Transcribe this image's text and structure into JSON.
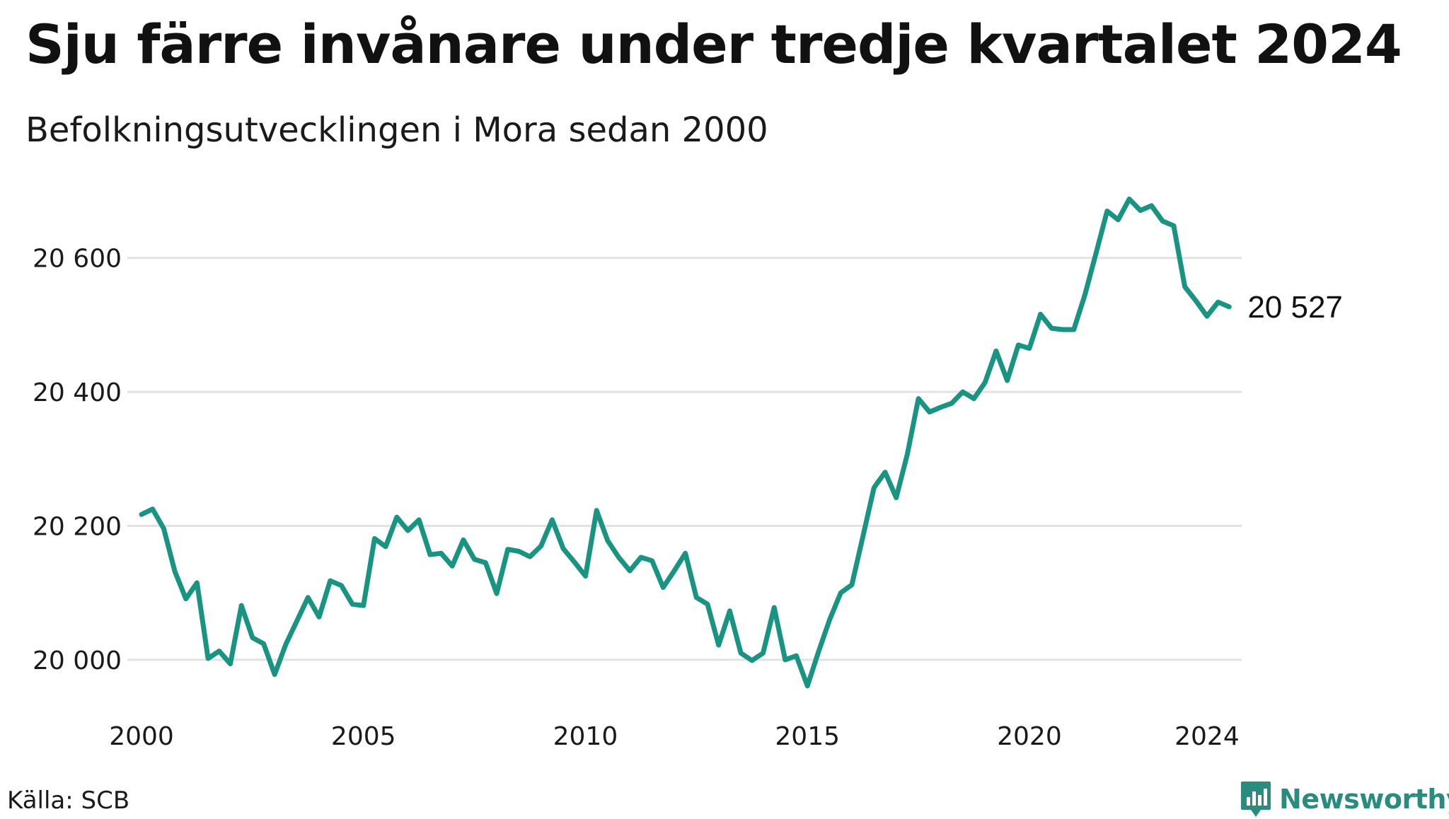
{
  "title": "Sju färre invånare under tredje kvartalet 2024",
  "subtitle": "Befolkningsutvecklingen i Mora sedan 2000",
  "source": "Källa: SCB",
  "brand": "Newsworthy",
  "colors": {
    "line": "#1a9482",
    "grid": "#e2e2e2",
    "brand": "#2a8c7f"
  },
  "chart_data": {
    "type": "line",
    "title": "Sju färre invånare under tredje kvartalet 2024",
    "subtitle": "Befolkningsutvecklingen i Mora sedan 2000",
    "xlabel": "",
    "ylabel": "",
    "grid": true,
    "x_ticks": [
      {
        "value": 2000,
        "label": "2000"
      },
      {
        "value": 2005,
        "label": "2005"
      },
      {
        "value": 2010,
        "label": "2010"
      },
      {
        "value": 2015,
        "label": "2015"
      },
      {
        "value": 2020,
        "label": "2020"
      },
      {
        "value": 2024,
        "label": "2024"
      }
    ],
    "y_ticks": [
      {
        "value": 20000,
        "label": "20 000"
      },
      {
        "value": 20200,
        "label": "20 200"
      },
      {
        "value": 20400,
        "label": "20 400"
      },
      {
        "value": 20600,
        "label": "20 600"
      }
    ],
    "xlim": [
      2000,
      2024.75
    ],
    "ylim": [
      19945,
      20700
    ],
    "end_label": "20 527",
    "series": [
      {
        "x": [
          2000.0,
          2000.25,
          2000.5,
          2000.75,
          2001.0,
          2001.25,
          2001.5,
          2001.75,
          2002.0,
          2002.25,
          2002.5,
          2002.75,
          2003.0,
          2003.25,
          2003.5,
          2003.75,
          2004.0,
          2004.25,
          2004.5,
          2004.75,
          2005.0,
          2005.25,
          2005.5,
          2005.75,
          2006.0,
          2006.25,
          2006.5,
          2006.75,
          2007.0,
          2007.25,
          2007.5,
          2007.75,
          2008.0,
          2008.25,
          2008.5,
          2008.75,
          2009.0,
          2009.25,
          2009.5,
          2009.75,
          2010.0,
          2010.25,
          2010.5,
          2010.75,
          2011.0,
          2011.25,
          2011.5,
          2011.75,
          2012.0,
          2012.25,
          2012.5,
          2012.75,
          2013.0,
          2013.25,
          2013.5,
          2013.75,
          2014.0,
          2014.25,
          2014.5,
          2014.75,
          2015.0,
          2015.25,
          2015.5,
          2015.75,
          2016.0,
          2016.25,
          2016.5,
          2016.75,
          2017.0,
          2017.25,
          2017.5,
          2017.75,
          2018.0,
          2018.25,
          2018.5,
          2018.75,
          2019.0,
          2019.25,
          2019.5,
          2019.75,
          2020.0,
          2020.25,
          2020.5,
          2020.75,
          2021.0,
          2021.25,
          2021.5,
          2021.75,
          2022.0,
          2022.25,
          2022.5,
          2022.75,
          2023.0,
          2023.25,
          2023.5,
          2023.75,
          2024.0,
          2024.25,
          2024.5
        ],
        "values": [
          20217,
          20225,
          20196,
          20132,
          20091,
          20115,
          20002,
          20013,
          19994,
          20081,
          20033,
          20024,
          19978,
          20023,
          20058,
          20093,
          20064,
          20118,
          20111,
          20083,
          20081,
          20181,
          20169,
          20213,
          20193,
          20209,
          20157,
          20159,
          20140,
          20179,
          20150,
          20145,
          20099,
          20165,
          20162,
          20154,
          20170,
          20209,
          20166,
          20146,
          20125,
          20223,
          20178,
          20153,
          20133,
          20153,
          20148,
          20108,
          20133,
          20159,
          20093,
          20083,
          20022,
          20073,
          20010,
          19999,
          20010,
          20078,
          20000,
          20006,
          19961,
          20012,
          20060,
          20100,
          20112,
          20184,
          20257,
          20280,
          20242,
          20307,
          20390,
          20370,
          20377,
          20383,
          20400,
          20390,
          20414,
          20461,
          20417,
          20470,
          20465,
          20516,
          20495,
          20493,
          20493,
          20545,
          20607,
          20670,
          20657,
          20688,
          20671,
          20678,
          20655,
          20648,
          20557,
          20536,
          20513,
          20534,
          20527
        ]
      }
    ]
  }
}
